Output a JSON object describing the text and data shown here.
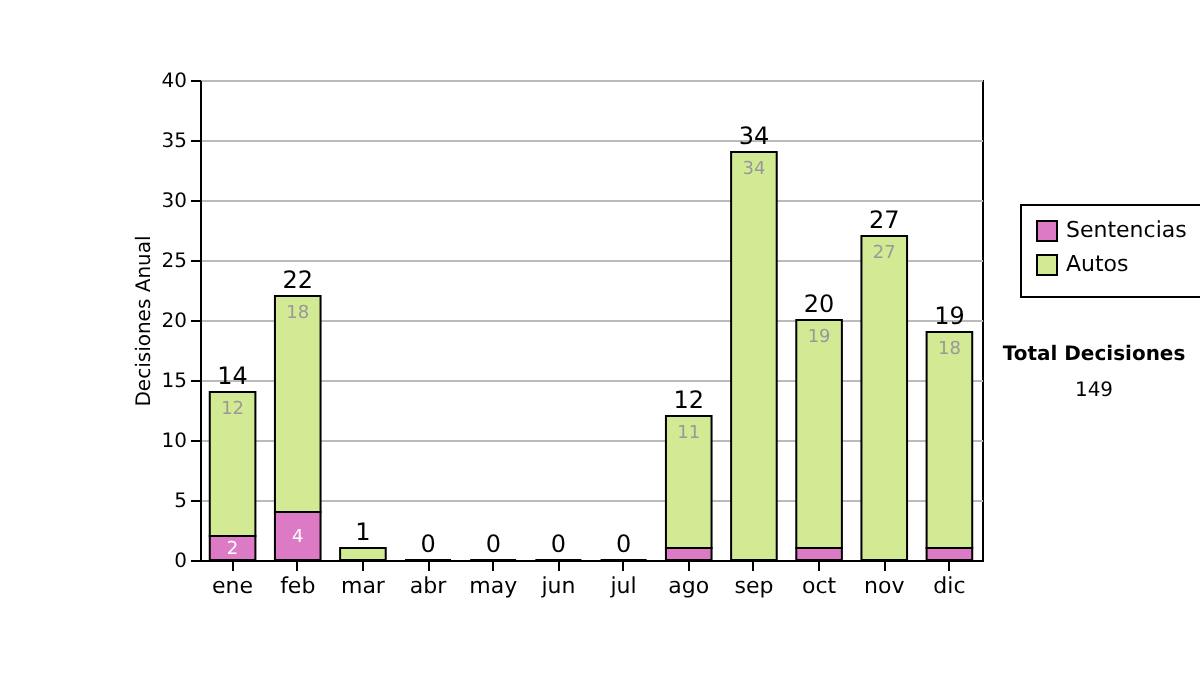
{
  "chart_data": {
    "type": "bar",
    "stacked": true,
    "ylabel": "Decisiones Anual",
    "categories": [
      "ene",
      "feb",
      "mar",
      "abr",
      "may",
      "jun",
      "jul",
      "ago",
      "sep",
      "oct",
      "nov",
      "dic"
    ],
    "series": [
      {
        "name": "Sentencias",
        "color": "#dd7ac6",
        "values": [
          2,
          4,
          0,
          0,
          0,
          0,
          0,
          1,
          0,
          1,
          0,
          1
        ],
        "value_labels": [
          "2",
          "4",
          null,
          null,
          null,
          null,
          null,
          null,
          null,
          null,
          null,
          null
        ]
      },
      {
        "name": "Autos",
        "color": "#d3ea95",
        "values": [
          12,
          18,
          1,
          0,
          0,
          0,
          0,
          11,
          34,
          19,
          27,
          18
        ],
        "value_labels": [
          "12",
          "18",
          null,
          null,
          null,
          null,
          null,
          "11",
          "34",
          "19",
          "27",
          "18"
        ]
      }
    ],
    "totals": [
      "14",
      "22",
      "1",
      "0",
      "0",
      "0",
      "0",
      "12",
      "34",
      "20",
      "27",
      "19"
    ],
    "ylim": [
      0,
      40
    ],
    "yticks": [
      0,
      5,
      10,
      15,
      20,
      25,
      30,
      35,
      40
    ],
    "grid": "y",
    "legend": "right",
    "annotations": [
      "Total Decisiones",
      "149"
    ]
  }
}
